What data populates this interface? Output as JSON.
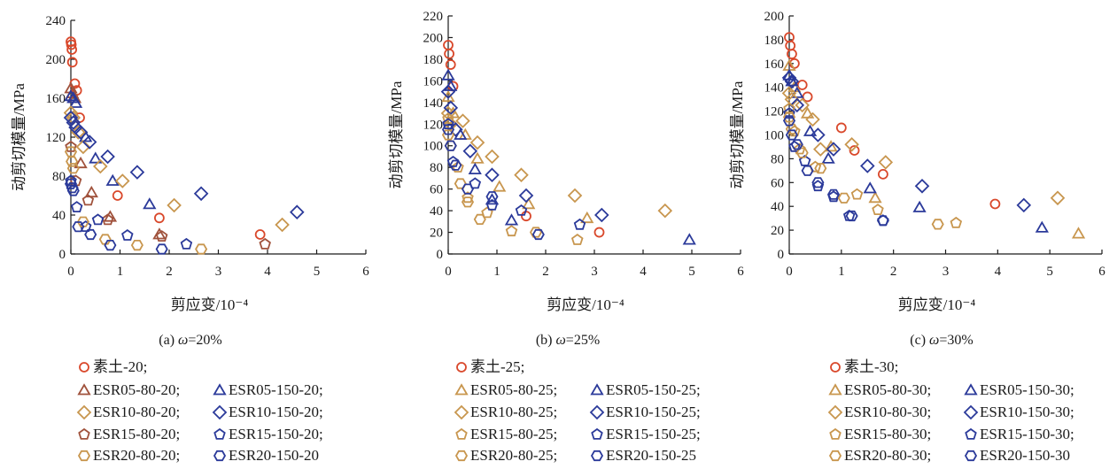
{
  "colors": {
    "red": "#d9482b",
    "brown": "#a0523c",
    "tan": "#c8964e",
    "blue": "#2b3a9a",
    "axis": "#1a1a1a"
  },
  "chart_data": [
    {
      "type": "scatter",
      "caption_prefix": "(a) ",
      "caption_omega": "ω",
      "caption_rest": "=20%",
      "xlabel": "剪应变/10⁻⁴",
      "ylabel": "动剪切模量/MPa",
      "xlim": [
        0,
        6
      ],
      "ylim": [
        0,
        240
      ],
      "xticks": [
        "0",
        "1",
        "2",
        "3",
        "4",
        "5",
        "6"
      ],
      "yticks": [
        "0",
        "40",
        "80",
        "120",
        "160",
        "200",
        "240"
      ],
      "legend": [
        [
          "素土-20;"
        ],
        [
          "ESR05-80-20;",
          "ESR05-150-20;"
        ],
        [
          "ESR10-80-20;",
          "ESR10-150-20;"
        ],
        [
          "ESR15-80-20;",
          "ESR15-150-20;"
        ],
        [
          "ESR20-80-20;",
          "ESR20-150-20"
        ]
      ],
      "series": [
        {
          "name": "素土-20",
          "marker": "circle",
          "color": "red",
          "points": [
            [
              0.0,
              218
            ],
            [
              0.01,
              215
            ],
            [
              0.02,
              210
            ],
            [
              0.03,
              197
            ],
            [
              0.08,
              175
            ],
            [
              0.12,
              168
            ],
            [
              0.18,
              140
            ],
            [
              0.95,
              60
            ],
            [
              1.8,
              37
            ],
            [
              3.85,
              20
            ]
          ]
        },
        {
          "name": "ESR05-80-20",
          "marker": "triangle",
          "color": "brown",
          "points": [
            [
              0.0,
              170
            ],
            [
              0.03,
              165
            ],
            [
              0.08,
              160
            ],
            [
              0.2,
              93
            ],
            [
              0.42,
              63
            ],
            [
              0.8,
              38
            ],
            [
              1.8,
              20
            ]
          ]
        },
        {
          "name": "ESR05-150-20",
          "marker": "triangle",
          "color": "blue",
          "points": [
            [
              0.0,
              162
            ],
            [
              0.05,
              160
            ],
            [
              0.1,
              155
            ],
            [
              0.3,
              120
            ],
            [
              0.5,
              98
            ],
            [
              0.85,
              75
            ],
            [
              1.6,
              51
            ]
          ]
        },
        {
          "name": "ESR10-80-20",
          "marker": "diamond",
          "color": "tan",
          "points": [
            [
              0.0,
              145
            ],
            [
              0.05,
              140
            ],
            [
              0.15,
              125
            ],
            [
              0.25,
              110
            ],
            [
              0.6,
              90
            ],
            [
              1.05,
              75
            ],
            [
              2.1,
              50
            ],
            [
              4.3,
              30
            ]
          ]
        },
        {
          "name": "ESR10-150-20",
          "marker": "diamond",
          "color": "blue",
          "points": [
            [
              0.0,
              140
            ],
            [
              0.05,
              135
            ],
            [
              0.1,
              130
            ],
            [
              0.2,
              125
            ],
            [
              0.38,
              115
            ],
            [
              0.75,
              100
            ],
            [
              1.35,
              84
            ],
            [
              2.65,
              62
            ],
            [
              4.6,
              43
            ]
          ]
        },
        {
          "name": "ESR15-80-20",
          "marker": "pentagon",
          "color": "brown",
          "points": [
            [
              0.0,
              110
            ],
            [
              0.1,
              75
            ],
            [
              0.35,
              55
            ],
            [
              0.75,
              35
            ],
            [
              1.85,
              18
            ],
            [
              3.95,
              10
            ]
          ]
        },
        {
          "name": "ESR15-150-20",
          "marker": "pentagon",
          "color": "blue",
          "points": [
            [
              0.0,
              75
            ],
            [
              0.12,
              48
            ],
            [
              0.3,
              28
            ],
            [
              0.55,
              35
            ],
            [
              1.15,
              19
            ],
            [
              2.35,
              10
            ]
          ]
        },
        {
          "name": "ESR20-80-20",
          "marker": "hexagon",
          "color": "tan",
          "points": [
            [
              0.0,
              105
            ],
            [
              0.02,
              95
            ],
            [
              0.05,
              88
            ],
            [
              0.25,
              33
            ],
            [
              0.7,
              15
            ],
            [
              1.35,
              9
            ],
            [
              2.65,
              5
            ]
          ]
        },
        {
          "name": "ESR20-150-20",
          "marker": "hexagon",
          "color": "blue",
          "points": [
            [
              0.0,
              72
            ],
            [
              0.03,
              68
            ],
            [
              0.05,
              65
            ],
            [
              0.15,
              28
            ],
            [
              0.4,
              20
            ],
            [
              0.8,
              9
            ],
            [
              1.85,
              5
            ]
          ]
        }
      ]
    },
    {
      "type": "scatter",
      "caption_prefix": "(b) ",
      "caption_omega": "ω",
      "caption_rest": "=25%",
      "xlabel": "剪应变/10⁻⁴",
      "ylabel": "动剪切模量/MPa",
      "xlim": [
        0,
        6
      ],
      "ylim": [
        0,
        220
      ],
      "xticks": [
        "0",
        "1",
        "2",
        "3",
        "4",
        "5",
        "6"
      ],
      "yticks": [
        "0",
        "20",
        "40",
        "60",
        "80",
        "100",
        "120",
        "140",
        "160",
        "180",
        "200",
        "220"
      ],
      "legend": [
        [
          "素土-25;"
        ],
        [
          "ESR05-80-25;",
          "ESR05-150-25;"
        ],
        [
          "ESR10-80-25;",
          "ESR10-150-25;"
        ],
        [
          "ESR15-80-25;",
          "ESR15-150-25;"
        ],
        [
          "ESR20-80-25;",
          "ESR20-150-25"
        ]
      ],
      "series": [
        {
          "name": "素土-25",
          "marker": "circle",
          "color": "red",
          "points": [
            [
              0.0,
              193
            ],
            [
              0.02,
              185
            ],
            [
              0.05,
              175
            ],
            [
              0.1,
              155
            ],
            [
              1.6,
              35
            ],
            [
              3.1,
              20
            ]
          ]
        },
        {
          "name": "ESR05-80-25",
          "marker": "triangle",
          "color": "tan",
          "points": [
            [
              0.0,
              145
            ],
            [
              0.1,
              130
            ],
            [
              0.35,
              110
            ],
            [
              0.6,
              88
            ],
            [
              1.05,
              62
            ],
            [
              1.65,
              46
            ],
            [
              2.85,
              33
            ]
          ]
        },
        {
          "name": "ESR05-150-25",
          "marker": "triangle",
          "color": "blue",
          "points": [
            [
              0.0,
              165
            ],
            [
              0.05,
              155
            ],
            [
              0.25,
              110
            ],
            [
              0.55,
              78
            ],
            [
              0.9,
              50
            ],
            [
              1.3,
              31
            ],
            [
              4.95,
              13
            ]
          ]
        },
        {
          "name": "ESR10-80-25",
          "marker": "diamond",
          "color": "tan",
          "points": [
            [
              0.0,
              130
            ],
            [
              0.05,
              120
            ],
            [
              0.3,
              123
            ],
            [
              0.6,
              103
            ],
            [
              0.9,
              90
            ],
            [
              1.5,
              73
            ],
            [
              2.6,
              54
            ],
            [
              4.45,
              40
            ]
          ]
        },
        {
          "name": "ESR10-150-25",
          "marker": "diamond",
          "color": "blue",
          "points": [
            [
              0.0,
              150
            ],
            [
              0.05,
              135
            ],
            [
              0.15,
              115
            ],
            [
              0.45,
              95
            ],
            [
              0.9,
              73
            ],
            [
              1.6,
              54
            ],
            [
              3.15,
              36
            ]
          ]
        },
        {
          "name": "ESR15-80-25",
          "marker": "pentagon",
          "color": "tan",
          "points": [
            [
              0.0,
              125
            ],
            [
              0.2,
              80
            ],
            [
              0.4,
              52
            ],
            [
              0.8,
              38
            ],
            [
              1.3,
              21
            ],
            [
              2.65,
              13
            ]
          ]
        },
        {
          "name": "ESR15-150-25",
          "marker": "pentagon",
          "color": "blue",
          "points": [
            [
              0.0,
              120
            ],
            [
              0.1,
              85
            ],
            [
              0.55,
              65
            ],
            [
              0.9,
              45
            ],
            [
              1.5,
              40
            ],
            [
              2.7,
              27
            ]
          ]
        },
        {
          "name": "ESR20-80-25",
          "marker": "hexagon",
          "color": "tan",
          "points": [
            [
              0.0,
              110
            ],
            [
              0.05,
              100
            ],
            [
              0.25,
              65
            ],
            [
              0.4,
              48
            ],
            [
              0.65,
              32
            ],
            [
              1.8,
              20
            ]
          ]
        },
        {
          "name": "ESR20-150-25",
          "marker": "hexagon",
          "color": "blue",
          "points": [
            [
              0.0,
              115
            ],
            [
              0.05,
              100
            ],
            [
              0.15,
              82
            ],
            [
              0.4,
              60
            ],
            [
              0.9,
              53
            ],
            [
              1.85,
              18
            ]
          ]
        }
      ]
    },
    {
      "type": "scatter",
      "caption_prefix": "(c) ",
      "caption_omega": "ω",
      "caption_rest": "=30%",
      "xlabel": "剪应变/10⁻⁴",
      "ylabel": "动剪切模量/MPa",
      "xlim": [
        0,
        6
      ],
      "ylim": [
        0,
        200
      ],
      "xticks": [
        "0",
        "1",
        "2",
        "3",
        "4",
        "5",
        "6"
      ],
      "yticks": [
        "0",
        "20",
        "40",
        "60",
        "80",
        "100",
        "120",
        "140",
        "160",
        "180",
        "200"
      ],
      "legend": [
        [
          "素土-30;"
        ],
        [
          "ESR05-80-30;",
          "ESR05-150-30;"
        ],
        [
          "ESR10-80-30;",
          "ESR10-150-30;"
        ],
        [
          "ESR15-80-30;",
          "ESR15-150-30;"
        ],
        [
          "ESR20-80-30;",
          "ESR20-150-30"
        ]
      ],
      "series": [
        {
          "name": "素土-30",
          "marker": "circle",
          "color": "red",
          "points": [
            [
              0.0,
              182
            ],
            [
              0.02,
              175
            ],
            [
              0.05,
              168
            ],
            [
              0.1,
              160
            ],
            [
              0.25,
              142
            ],
            [
              0.35,
              132
            ],
            [
              1.0,
              106
            ],
            [
              1.25,
              87
            ],
            [
              1.8,
              67
            ],
            [
              3.95,
              42
            ]
          ]
        },
        {
          "name": "ESR05-80-30",
          "marker": "triangle",
          "color": "tan",
          "points": [
            [
              0.0,
              158
            ],
            [
              0.1,
              140
            ],
            [
              0.35,
              118
            ],
            [
              0.8,
              90
            ],
            [
              1.65,
              47
            ],
            [
              5.55,
              17
            ]
          ]
        },
        {
          "name": "ESR05-150-30",
          "marker": "triangle",
          "color": "blue",
          "points": [
            [
              0.0,
              150
            ],
            [
              0.05,
              145
            ],
            [
              0.15,
              135
            ],
            [
              0.4,
              103
            ],
            [
              0.75,
              80
            ],
            [
              1.55,
              55
            ],
            [
              2.5,
              39
            ],
            [
              4.85,
              22
            ]
          ]
        },
        {
          "name": "ESR10-80-30",
          "marker": "diamond",
          "color": "tan",
          "points": [
            [
              0.0,
              135
            ],
            [
              0.05,
              130
            ],
            [
              0.25,
              125
            ],
            [
              0.45,
              113
            ],
            [
              0.6,
              88
            ],
            [
              1.2,
              92
            ],
            [
              1.85,
              77
            ],
            [
              5.15,
              47
            ]
          ]
        },
        {
          "name": "ESR10-150-30",
          "marker": "diamond",
          "color": "blue",
          "points": [
            [
              0.0,
              148
            ],
            [
              0.05,
              145
            ],
            [
              0.15,
              125
            ],
            [
              0.55,
              100
            ],
            [
              0.85,
              88
            ],
            [
              1.5,
              74
            ],
            [
              2.55,
              57
            ],
            [
              4.5,
              41
            ]
          ]
        },
        {
          "name": "ESR15-80-30",
          "marker": "pentagon",
          "color": "tan",
          "points": [
            [
              0.0,
              122
            ],
            [
              0.1,
              103
            ],
            [
              0.2,
              88
            ],
            [
              0.5,
              73
            ],
            [
              1.3,
              50
            ],
            [
              1.7,
              37
            ],
            [
              3.2,
              26
            ]
          ]
        },
        {
          "name": "ESR15-150-30",
          "marker": "pentagon",
          "color": "blue",
          "points": [
            [
              0.0,
              118
            ],
            [
              0.1,
              90
            ],
            [
              0.3,
              78
            ],
            [
              0.55,
              57
            ],
            [
              0.85,
              48
            ],
            [
              1.15,
              32
            ],
            [
              1.8,
              28
            ]
          ]
        },
        {
          "name": "ESR20-80-30",
          "marker": "hexagon",
          "color": "tan",
          "points": [
            [
              0.0,
              115
            ],
            [
              0.05,
              105
            ],
            [
              0.25,
              85
            ],
            [
              0.6,
              72
            ],
            [
              1.05,
              47
            ],
            [
              2.85,
              25
            ]
          ]
        },
        {
          "name": "ESR20-150-30",
          "marker": "hexagon",
          "color": "blue",
          "points": [
            [
              0.0,
              112
            ],
            [
              0.05,
              100
            ],
            [
              0.15,
              92
            ],
            [
              0.35,
              70
            ],
            [
              0.55,
              60
            ],
            [
              0.85,
              50
            ],
            [
              1.2,
              32
            ],
            [
              1.8,
              28
            ]
          ]
        }
      ]
    }
  ]
}
